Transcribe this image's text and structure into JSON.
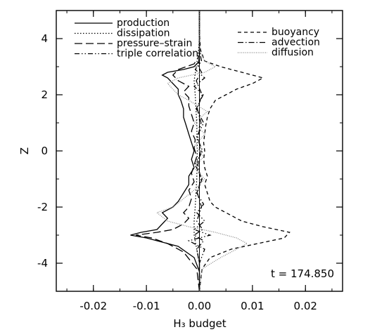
{
  "chart_data": {
    "type": "line",
    "xlabel": "H₃ budget",
    "ylabel": "Z",
    "xlim": [
      -0.027,
      0.027
    ],
    "ylim": [
      -5,
      5
    ],
    "x_ticks": [
      "-0.02",
      "-0.01",
      "0.00",
      "0.01",
      "0.02"
    ],
    "x_tick_values": [
      -0.02,
      -0.01,
      0.0,
      0.01,
      0.02
    ],
    "y_ticks": [
      "-4",
      "-2",
      "0",
      "2",
      "4"
    ],
    "y_tick_values": [
      -4,
      -2,
      0,
      2,
      4
    ],
    "annotation": "t = 174.850",
    "legend_position": "top",
    "series": [
      {
        "name": "production",
        "style": "solid",
        "y": [
          -5.0,
          -4.3,
          -3.8,
          -3.4,
          -3.1,
          -3.0,
          -2.9,
          -2.8,
          -2.6,
          -2.4,
          -2.2,
          -2.0,
          -1.8,
          -1.5,
          -1.2,
          -0.9,
          -0.6,
          -0.3,
          0.0,
          0.3,
          0.6,
          0.9,
          1.2,
          1.5,
          1.8,
          2.0,
          2.2,
          2.4,
          2.6,
          2.7,
          2.8,
          2.9,
          3.0,
          3.2,
          3.6,
          4.2,
          5.0
        ],
        "x": [
          0.0,
          0.0,
          -0.001,
          -0.004,
          -0.01,
          -0.013,
          -0.011,
          -0.008,
          -0.007,
          -0.006,
          -0.007,
          -0.005,
          -0.004,
          -0.003,
          -0.002,
          -0.002,
          -0.001,
          -0.0015,
          -0.001,
          -0.0015,
          -0.002,
          -0.0025,
          -0.003,
          -0.003,
          -0.0035,
          -0.004,
          -0.004,
          -0.005,
          -0.006,
          -0.007,
          -0.006,
          -0.003,
          -0.001,
          0.0,
          0.0,
          0.0,
          0.0
        ]
      },
      {
        "name": "dissipation",
        "style": "dotted",
        "y": [
          -5.0,
          -4.0,
          -3.5,
          -3.0,
          -2.5,
          -2.0,
          -1.0,
          0.0,
          1.0,
          2.0,
          2.5,
          3.0,
          3.5,
          4.0,
          5.0
        ],
        "x": [
          0.0,
          0.0,
          -0.0005,
          -0.001,
          -0.001,
          -0.0008,
          -0.0005,
          -0.0004,
          -0.0005,
          -0.0008,
          -0.001,
          -0.0006,
          -0.0002,
          0.0,
          0.0
        ]
      },
      {
        "name": "pressure–strain",
        "style": "longdash",
        "y": [
          -5.0,
          -4.2,
          -3.6,
          -3.3,
          -3.1,
          -3.0,
          -2.9,
          -2.8,
          -2.6,
          -2.4,
          -2.2,
          -2.0,
          -1.7,
          -1.4,
          -1.1,
          -0.8,
          -0.5,
          -0.2,
          0.1,
          0.4,
          0.7,
          1.0,
          1.3,
          1.6,
          1.9,
          2.1,
          2.3,
          2.5,
          2.7,
          2.9,
          3.1,
          3.4,
          4.0,
          5.0
        ],
        "x": [
          0.0,
          -0.0005,
          -0.003,
          -0.006,
          -0.009,
          -0.012,
          -0.008,
          -0.005,
          -0.003,
          -0.002,
          -0.003,
          -0.002,
          -0.0015,
          -0.002,
          -0.001,
          -0.0015,
          -0.001,
          -0.0005,
          -0.001,
          -0.0008,
          -0.0015,
          -0.001,
          -0.0015,
          -0.002,
          -0.002,
          -0.003,
          -0.002,
          -0.004,
          -0.005,
          -0.004,
          -0.001,
          0.0,
          0.0,
          0.0
        ]
      },
      {
        "name": "triple correlation",
        "style": "dashdotdot",
        "y": [
          -5.0,
          -4.0,
          -3.5,
          -3.2,
          -3.0,
          -2.8,
          -2.5,
          -2.2,
          -1.9,
          -1.5,
          -1.0,
          -0.5,
          0.0,
          0.5,
          1.0,
          1.5,
          2.0,
          2.3,
          2.6,
          2.9,
          3.2,
          3.6,
          4.2,
          5.0
        ],
        "x": [
          0.0,
          0.0,
          0.001,
          -0.002,
          0.002,
          -0.001,
          0.001,
          -0.0005,
          0.0008,
          -0.0005,
          0.0005,
          -0.0008,
          0.0006,
          -0.0005,
          0.0008,
          -0.0006,
          0.0007,
          -0.001,
          0.001,
          -0.0008,
          0.0004,
          0.0,
          0.0,
          0.0
        ]
      },
      {
        "name": "buoyancy",
        "style": "dashed",
        "y": [
          -5.0,
          -4.2,
          -3.8,
          -3.5,
          -3.3,
          -3.1,
          -2.9,
          -2.7,
          -2.5,
          -2.2,
          -2.0,
          -1.8,
          -1.5,
          -1.2,
          -0.9,
          -0.6,
          -0.3,
          0.0,
          0.3,
          0.6,
          0.9,
          1.2,
          1.5,
          1.8,
          2.0,
          2.2,
          2.4,
          2.6,
          2.8,
          3.0,
          3.2,
          3.6,
          4.2,
          5.0
        ],
        "x": [
          0.0,
          0.0005,
          0.002,
          0.006,
          0.011,
          0.016,
          0.017,
          0.012,
          0.008,
          0.005,
          0.003,
          0.002,
          0.0015,
          0.001,
          0.0015,
          0.001,
          0.0008,
          0.001,
          0.0008,
          0.001,
          0.0012,
          0.0015,
          0.002,
          0.003,
          0.005,
          0.007,
          0.01,
          0.012,
          0.008,
          0.004,
          0.001,
          0.0002,
          0.0,
          0.0
        ]
      },
      {
        "name": "advection",
        "style": "dashdot",
        "y": [
          -5.0,
          -4.0,
          -3.5,
          -3.2,
          -3.0,
          -2.8,
          -2.5,
          -2.0,
          -1.5,
          -1.0,
          -0.5,
          0.0,
          0.5,
          1.0,
          1.5,
          2.0,
          2.5,
          2.8,
          3.0,
          3.5,
          4.0,
          5.0
        ],
        "x": [
          0.0,
          0.0,
          -0.0005,
          0.0008,
          -0.001,
          0.0006,
          -0.0005,
          0.0004,
          -0.0004,
          0.0003,
          -0.0003,
          0.0003,
          -0.0003,
          0.0003,
          -0.0004,
          0.0005,
          -0.0006,
          0.0004,
          -0.0002,
          0.0,
          0.0,
          0.0
        ]
      },
      {
        "name": "diffusion",
        "style": "finedot",
        "y": [
          -5.0,
          -4.2,
          -3.8,
          -3.5,
          -3.3,
          -3.1,
          -2.9,
          -2.7,
          -2.5,
          -2.2,
          -2.0,
          -1.7,
          -1.4,
          -1.0,
          -0.6,
          -0.2,
          0.2,
          0.6,
          1.0,
          1.4,
          1.8,
          2.0,
          2.2,
          2.4,
          2.6,
          2.8,
          3.0,
          3.2,
          3.6,
          4.2,
          5.0
        ],
        "x": [
          0.0,
          0.0005,
          0.004,
          0.007,
          0.009,
          0.007,
          0.003,
          -0.002,
          -0.006,
          -0.008,
          -0.005,
          -0.003,
          -0.001,
          0.001,
          -0.001,
          0.0008,
          -0.0008,
          0.001,
          -0.001,
          0.0015,
          -0.002,
          -0.004,
          -0.005,
          -0.006,
          -0.004,
          0.001,
          0.003,
          0.001,
          0.0,
          0.0,
          0.0
        ]
      }
    ]
  }
}
